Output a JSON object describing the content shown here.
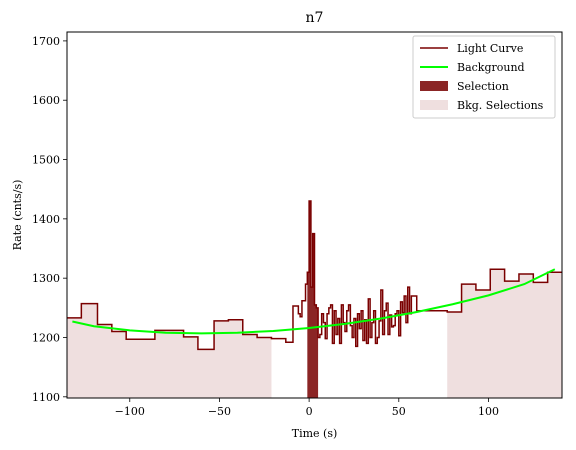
{
  "chart_data": {
    "type": "line",
    "title": "n7",
    "xlabel": "Time (s)",
    "ylabel": "Rate (cnts/s)",
    "xlim": [
      -135,
      141
    ],
    "ylim": [
      1098,
      1715
    ],
    "xticks": [
      -100,
      -50,
      0,
      50,
      100
    ],
    "yticks": [
      1100,
      1200,
      1300,
      1400,
      1500,
      1600,
      1700
    ],
    "xtick_labels": [
      "−100",
      "−50",
      "0",
      "50",
      "100"
    ],
    "ytick_labels": [
      "1100",
      "1200",
      "1300",
      "1400",
      "1500",
      "1600",
      "1700"
    ],
    "grid": false,
    "legend_position": "top-right",
    "legend": [
      "Light Curve",
      "Background",
      "Selection",
      "Bkg. Selections"
    ],
    "colors": {
      "light_curve": "#7a0000",
      "background": "#00ff00",
      "selection": "#8b2525",
      "bkg_selection": "#efdfdf"
    },
    "light_curve": {
      "name": "Light Curve",
      "edges": [
        -135,
        -127,
        -118,
        -110,
        -102,
        -86,
        -70,
        -62,
        -53,
        -45,
        -37,
        -29,
        -21,
        -13,
        -9,
        -6,
        -5,
        -4,
        -2,
        -1,
        0,
        1,
        2,
        3,
        4,
        5,
        6,
        7,
        8,
        9,
        10,
        11,
        12,
        13,
        14,
        15,
        16,
        17,
        18,
        19,
        20,
        21,
        22,
        23,
        24,
        25,
        26,
        27,
        28,
        29,
        30,
        31,
        32,
        33,
        34,
        35,
        36,
        37,
        38,
        39,
        40,
        41,
        42,
        43,
        44,
        45,
        46,
        47,
        48,
        49,
        50,
        51,
        52,
        53,
        54,
        55,
        56,
        57,
        60,
        69,
        77,
        85,
        93,
        101,
        109,
        117,
        125,
        133,
        141
      ],
      "rates": [
        1233,
        1257,
        1222,
        1210,
        1197,
        1212,
        1201,
        1180,
        1228,
        1230,
        1205,
        1200,
        1198,
        1192,
        1253,
        1240,
        1235,
        1262,
        1290,
        1310,
        1430,
        1285,
        1375,
        1255,
        1250,
        1200,
        1205,
        1240,
        1225,
        1198,
        1240,
        1250,
        1255,
        1190,
        1245,
        1205,
        1232,
        1190,
        1255,
        1225,
        1210,
        1245,
        1255,
        1220,
        1200,
        1232,
        1185,
        1240,
        1215,
        1245,
        1195,
        1230,
        1190,
        1265,
        1200,
        1225,
        1245,
        1190,
        1200,
        1228,
        1280,
        1205,
        1245,
        1258,
        1205,
        1238,
        1218,
        1220,
        1240,
        1245,
        1203,
        1260,
        1242,
        1270,
        1225,
        1285,
        1240,
        1270,
        1245,
        1245,
        1243,
        1290,
        1280,
        1315,
        1295,
        1307,
        1293,
        1310,
        1310
      ]
    },
    "background": {
      "name": "Background",
      "x": [
        -132,
        -120,
        -100,
        -80,
        -60,
        -40,
        -20,
        0,
        20,
        40,
        60,
        80,
        100,
        120,
        137
      ],
      "y": [
        1227,
        1219,
        1212,
        1208,
        1207,
        1208,
        1211,
        1216,
        1223,
        1232,
        1243,
        1256,
        1271,
        1290,
        1315
      ]
    },
    "selection": {
      "name": "Selection",
      "x_range": [
        -1,
        5
      ]
    },
    "bkg_selections": {
      "name": "Bkg. Selections",
      "ranges": [
        [
          -135,
          -21
        ],
        [
          77,
          141
        ]
      ]
    }
  }
}
